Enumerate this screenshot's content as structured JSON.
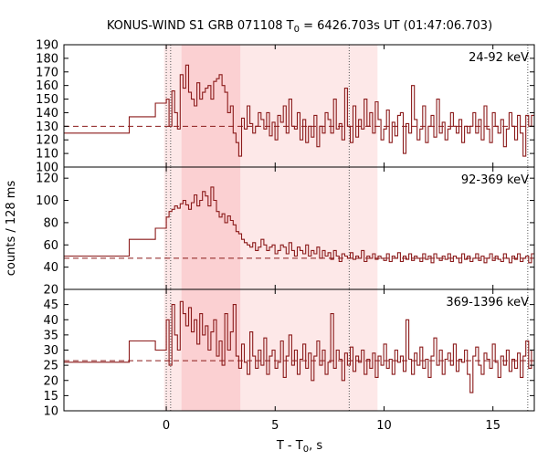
{
  "chart_data": {
    "type": "line",
    "title_main": "KONUS-WIND S1 GRB 071108 T",
    "title_sub": "0",
    "title_rest": " = 6426.703s UT (01:47:06.703)",
    "xlabel_main": "T - T",
    "xlabel_sub": "0",
    "xlabel_rest": ", s",
    "ylabel": "counts / 128 ms",
    "xlim": [
      -4.7,
      16.9
    ],
    "xticks": [
      0,
      5,
      10,
      15
    ],
    "xtick_labels": [
      "0",
      "5",
      "10",
      "15"
    ],
    "colors": {
      "curve": "#8b1a1a",
      "background_line": "#8b1a1a",
      "light_band": "#fde8e8",
      "dark_band": "#fbd0d2",
      "axes": "#000000"
    },
    "shaded_regions": [
      {
        "x": [
          -0.1,
          9.7
        ],
        "shade": "light"
      },
      {
        "x": [
          0.7,
          3.4
        ],
        "shade": "dark"
      }
    ],
    "vertical_markers": [
      0.0,
      0.2,
      8.4,
      16.6
    ],
    "panels": [
      {
        "band": "24-92 keV",
        "ylim": [
          100,
          190
        ],
        "yticks": [
          100,
          110,
          120,
          130,
          140,
          150,
          160,
          170,
          180,
          190
        ],
        "ytick_labels": [
          "100",
          "110",
          "120",
          "130",
          "140",
          "150",
          "160",
          "170",
          "180",
          "190"
        ],
        "background": 130,
        "step_x": [
          -4.7,
          -1.7,
          -0.5,
          0.0,
          0.128,
          0.256,
          0.384,
          0.512,
          0.64,
          0.768,
          0.896,
          1.024,
          1.152,
          1.28,
          1.408,
          1.536,
          1.664,
          1.792,
          1.92,
          2.048,
          2.176,
          2.304,
          2.432,
          2.56,
          2.688,
          2.816,
          2.944,
          3.072,
          3.2,
          3.328,
          3.456,
          3.584,
          3.712,
          3.84,
          3.968,
          4.096,
          4.224,
          4.352,
          4.48,
          4.608,
          4.736,
          4.864,
          4.992,
          5.12,
          5.248,
          5.376,
          5.504,
          5.632,
          5.76,
          5.888,
          6.016,
          6.144,
          6.272,
          6.4,
          6.528,
          6.656,
          6.784,
          6.912,
          7.04,
          7.168,
          7.296,
          7.424,
          7.552,
          7.68,
          7.808,
          7.936,
          8.064,
          8.192,
          8.32,
          8.448,
          8.576,
          8.704,
          8.832,
          8.96,
          9.088,
          9.216,
          9.344,
          9.472,
          9.6,
          9.728,
          9.856,
          9.984,
          10.112,
          10.24,
          10.368,
          10.496,
          10.624,
          10.752,
          10.88,
          11.008,
          11.136,
          11.264,
          11.392,
          11.52,
          11.648,
          11.776,
          11.904,
          12.032,
          12.16,
          12.288,
          12.416,
          12.544,
          12.672,
          12.8,
          12.928,
          13.056,
          13.184,
          13.312,
          13.44,
          13.568,
          13.696,
          13.824,
          13.952,
          14.08,
          14.208,
          14.336,
          14.464,
          14.592,
          14.72,
          14.848,
          14.976,
          15.104,
          15.232,
          15.36,
          15.488,
          15.616,
          15.744,
          15.872,
          16.0,
          16.128,
          16.256,
          16.384,
          16.512,
          16.64,
          16.768
        ],
        "step_y": [
          125,
          137,
          147,
          150,
          130,
          156,
          140,
          128,
          168,
          158,
          175,
          155,
          150,
          145,
          162,
          150,
          155,
          158,
          160,
          150,
          163,
          165,
          168,
          160,
          155,
          140,
          145,
          125,
          118,
          108,
          136,
          128,
          145,
          132,
          125,
          130,
          140,
          135,
          128,
          140,
          123,
          133,
          120,
          138,
          133,
          145,
          125,
          150,
          130,
          128,
          140,
          120,
          135,
          118,
          130,
          122,
          138,
          115,
          130,
          125,
          140,
          135,
          125,
          150,
          128,
          132,
          120,
          158,
          130,
          118,
          145,
          122,
          135,
          128,
          150,
          130,
          140,
          125,
          148,
          135,
          120,
          128,
          142,
          118,
          133,
          123,
          138,
          140,
          110,
          132,
          125,
          160,
          135,
          120,
          128,
          145,
          118,
          130,
          138,
          122,
          150,
          125,
          133,
          120,
          128,
          140,
          130,
          125,
          135,
          118,
          130,
          125,
          130,
          140,
          125,
          135,
          120,
          145,
          128,
          118,
          140,
          130,
          125,
          135,
          115,
          128,
          140,
          130,
          120,
          138,
          125,
          108,
          138,
          130,
          138
        ],
        "step_end_x": 16.9
      },
      {
        "band": "92-369 keV",
        "ylim": [
          20,
          130
        ],
        "yticks": [
          20,
          40,
          60,
          80,
          100,
          120
        ],
        "ytick_labels": [
          "20",
          "40",
          "60",
          "80",
          "100",
          "120"
        ],
        "background": 48,
        "step_x": [
          -4.7,
          -1.7,
          -0.5,
          0.0,
          0.128,
          0.256,
          0.384,
          0.512,
          0.64,
          0.768,
          0.896,
          1.024,
          1.152,
          1.28,
          1.408,
          1.536,
          1.664,
          1.792,
          1.92,
          2.048,
          2.176,
          2.304,
          2.432,
          2.56,
          2.688,
          2.816,
          2.944,
          3.072,
          3.2,
          3.328,
          3.456,
          3.584,
          3.712,
          3.84,
          3.968,
          4.096,
          4.224,
          4.352,
          4.48,
          4.608,
          4.736,
          4.864,
          4.992,
          5.12,
          5.248,
          5.376,
          5.504,
          5.632,
          5.76,
          5.888,
          6.016,
          6.144,
          6.272,
          6.4,
          6.528,
          6.656,
          6.784,
          6.912,
          7.04,
          7.168,
          7.296,
          7.424,
          7.552,
          7.68,
          7.808,
          7.936,
          8.064,
          8.192,
          8.32,
          8.448,
          8.576,
          8.704,
          8.832,
          8.96,
          9.088,
          9.216,
          9.344,
          9.472,
          9.6,
          9.728,
          9.856,
          9.984,
          10.112,
          10.24,
          10.368,
          10.496,
          10.624,
          10.752,
          10.88,
          11.008,
          11.136,
          11.264,
          11.392,
          11.52,
          11.648,
          11.776,
          11.904,
          12.032,
          12.16,
          12.288,
          12.416,
          12.544,
          12.672,
          12.8,
          12.928,
          13.056,
          13.184,
          13.312,
          13.44,
          13.568,
          13.696,
          13.824,
          13.952,
          14.08,
          14.208,
          14.336,
          14.464,
          14.592,
          14.72,
          14.848,
          14.976,
          15.104,
          15.232,
          15.36,
          15.488,
          15.616,
          15.744,
          15.872,
          16.0,
          16.128,
          16.256,
          16.384,
          16.512,
          16.64,
          16.768
        ],
        "step_y": [
          50,
          65,
          75,
          85,
          90,
          92,
          95,
          93,
          97,
          100,
          96,
          92,
          98,
          105,
          95,
          100,
          108,
          104,
          95,
          112,
          100,
          90,
          85,
          88,
          80,
          86,
          82,
          78,
          72,
          70,
          65,
          62,
          60,
          58,
          62,
          55,
          58,
          65,
          60,
          55,
          58,
          60,
          52,
          55,
          60,
          58,
          52,
          62,
          55,
          50,
          58,
          55,
          52,
          60,
          50,
          55,
          52,
          58,
          48,
          55,
          50,
          53,
          47,
          55,
          50,
          45,
          52,
          50,
          48,
          53,
          47,
          50,
          48,
          55,
          45,
          50,
          48,
          52,
          47,
          50,
          48,
          46,
          52,
          45,
          50,
          48,
          53,
          45,
          50,
          47,
          52,
          46,
          50,
          48,
          45,
          52,
          47,
          50,
          44,
          52,
          48,
          46,
          50,
          47,
          52,
          45,
          50,
          48,
          44,
          52,
          47,
          50,
          45,
          48,
          52,
          46,
          50,
          44,
          48,
          52,
          46,
          50,
          47,
          45,
          52,
          48,
          44,
          50,
          47,
          52,
          45,
          48,
          50,
          44,
          52
        ],
        "step_end_x": 16.9
      },
      {
        "band": "369-1396 keV",
        "ylim": [
          10,
          50
        ],
        "yticks": [
          10,
          15,
          20,
          25,
          30,
          35,
          40,
          45
        ],
        "ytick_labels": [
          "10",
          "15",
          "20",
          "25",
          "30",
          "35",
          "40",
          "45"
        ],
        "background": 26.5,
        "step_x": [
          -4.7,
          -1.7,
          -0.5,
          0.0,
          0.128,
          0.256,
          0.384,
          0.512,
          0.64,
          0.768,
          0.896,
          1.024,
          1.152,
          1.28,
          1.408,
          1.536,
          1.664,
          1.792,
          1.92,
          2.048,
          2.176,
          2.304,
          2.432,
          2.56,
          2.688,
          2.816,
          2.944,
          3.072,
          3.2,
          3.328,
          3.456,
          3.584,
          3.712,
          3.84,
          3.968,
          4.096,
          4.224,
          4.352,
          4.48,
          4.608,
          4.736,
          4.864,
          4.992,
          5.12,
          5.248,
          5.376,
          5.504,
          5.632,
          5.76,
          5.888,
          6.016,
          6.144,
          6.272,
          6.4,
          6.528,
          6.656,
          6.784,
          6.912,
          7.04,
          7.168,
          7.296,
          7.424,
          7.552,
          7.68,
          7.808,
          7.936,
          8.064,
          8.192,
          8.32,
          8.448,
          8.576,
          8.704,
          8.832,
          8.96,
          9.088,
          9.216,
          9.344,
          9.472,
          9.6,
          9.728,
          9.856,
          9.984,
          10.112,
          10.24,
          10.368,
          10.496,
          10.624,
          10.752,
          10.88,
          11.008,
          11.136,
          11.264,
          11.392,
          11.52,
          11.648,
          11.776,
          11.904,
          12.032,
          12.16,
          12.288,
          12.416,
          12.544,
          12.672,
          12.8,
          12.928,
          13.056,
          13.184,
          13.312,
          13.44,
          13.568,
          13.696,
          13.824,
          13.952,
          14.08,
          14.208,
          14.336,
          14.464,
          14.592,
          14.72,
          14.848,
          14.976,
          15.104,
          15.232,
          15.36,
          15.488,
          15.616,
          15.744,
          15.872,
          16.0,
          16.128,
          16.256,
          16.384,
          16.512,
          16.64,
          16.768
        ],
        "step_y": [
          26,
          33,
          30,
          40,
          25,
          45,
          35,
          30,
          46,
          42,
          38,
          44,
          36,
          40,
          32,
          42,
          35,
          38,
          30,
          36,
          40,
          28,
          33,
          25,
          42,
          30,
          36,
          45,
          28,
          24,
          32,
          26,
          22,
          36,
          28,
          24,
          30,
          25,
          34,
          22,
          28,
          30,
          24,
          26,
          33,
          21,
          28,
          35,
          25,
          30,
          22,
          27,
          32,
          24,
          29,
          20,
          28,
          33,
          25,
          30,
          22,
          26,
          42,
          24,
          30,
          27,
          20,
          29,
          25,
          31,
          23,
          28,
          26,
          30,
          22,
          27,
          24,
          29,
          21,
          28,
          25,
          32,
          24,
          27,
          22,
          30,
          26,
          28,
          23,
          40,
          27,
          22,
          29,
          25,
          31,
          24,
          27,
          21,
          28,
          34,
          25,
          30,
          22,
          27,
          29,
          25,
          32,
          23,
          27,
          26,
          30,
          22,
          16,
          28,
          31,
          25,
          22,
          29,
          27,
          24,
          32,
          26,
          21,
          28,
          25,
          30,
          23,
          27,
          24,
          29,
          21,
          28,
          33,
          24,
          30
        ],
        "step_end_x": 16.9
      }
    ]
  }
}
